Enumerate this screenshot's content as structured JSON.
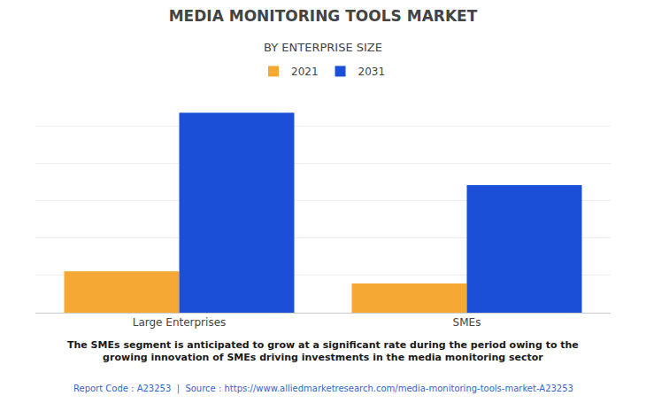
{
  "chart_data": {
    "type": "bar",
    "title": "MEDIA MONITORING TOOLS MARKET",
    "subtitle": "BY ENTERPRISE SIZE",
    "categories": [
      "Large Enterprises",
      "SMEs"
    ],
    "series": [
      {
        "name": "2021",
        "color": "#F5A833",
        "values": [
          1.2,
          0.85
        ]
      },
      {
        "name": "2031",
        "color": "#1B4FD8",
        "values": [
          5.8,
          3.7
        ]
      }
    ],
    "ylim": [
      0,
      6.5
    ],
    "yticks": [
      0,
      1.0833333333333333,
      2.1666666666666665,
      3.25,
      4.333333333333333,
      5.416666666666666,
      6.5
    ],
    "grid": true,
    "tick_labels": "x",
    "legend": "top",
    "annotations": [
      "The SMEs segment is anticipated to grow at a significant rate during the period owing to the\ngrowing innovation of SMEs driving investments in the media monitoring sector",
      "Report Code : A23253  |  Source : https://www.alliedmarketresearch.com/media-monitoring-tools-market-A23253"
    ]
  }
}
